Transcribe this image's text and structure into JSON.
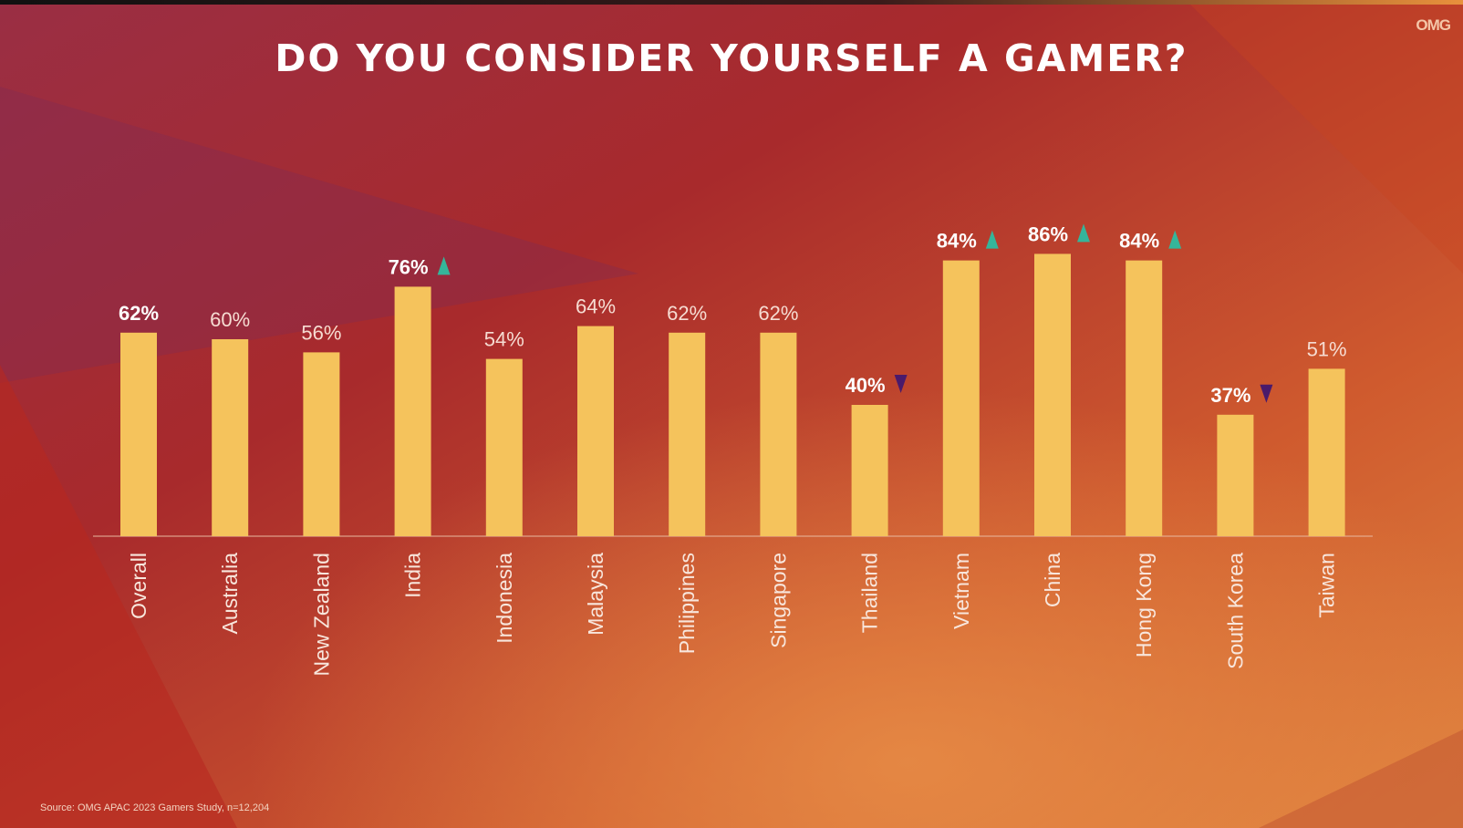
{
  "header": {
    "title": "DO YOU CONSIDER YOURSELF A GAMER?",
    "logo": "OMG"
  },
  "footer": {
    "source": "Source: OMG APAC 2023 Gamers Study, n=12,204"
  },
  "colors": {
    "bar": "#f5c35c",
    "up_marker": "#35b59a",
    "down_marker": "#4a1a6b"
  },
  "chart_data": {
    "type": "bar",
    "title": "DO YOU CONSIDER YOURSELF A GAMER?",
    "categories": [
      "Overall",
      "Australia",
      "New Zealand",
      "India",
      "Indonesia",
      "Malaysia",
      "Philippines",
      "Singapore",
      "Thailand",
      "Vietnam",
      "China",
      "Hong Kong",
      "South Korea",
      "Taiwan"
    ],
    "values": [
      62,
      60,
      56,
      76,
      54,
      64,
      62,
      62,
      40,
      84,
      86,
      84,
      37,
      51
    ],
    "labels": [
      "62%",
      "60%",
      "56%",
      "76%",
      "54%",
      "64%",
      "62%",
      "62%",
      "40%",
      "84%",
      "86%",
      "84%",
      "37%",
      "51%"
    ],
    "markers": [
      "",
      "",
      "",
      "up",
      "",
      "",
      "",
      "",
      "down",
      "up",
      "up",
      "up",
      "down",
      ""
    ],
    "bold_labels": [
      true,
      false,
      false,
      true,
      false,
      false,
      false,
      false,
      true,
      true,
      true,
      true,
      true,
      false
    ],
    "ylim": [
      0,
      100
    ],
    "grid": false,
    "legend": "none"
  }
}
